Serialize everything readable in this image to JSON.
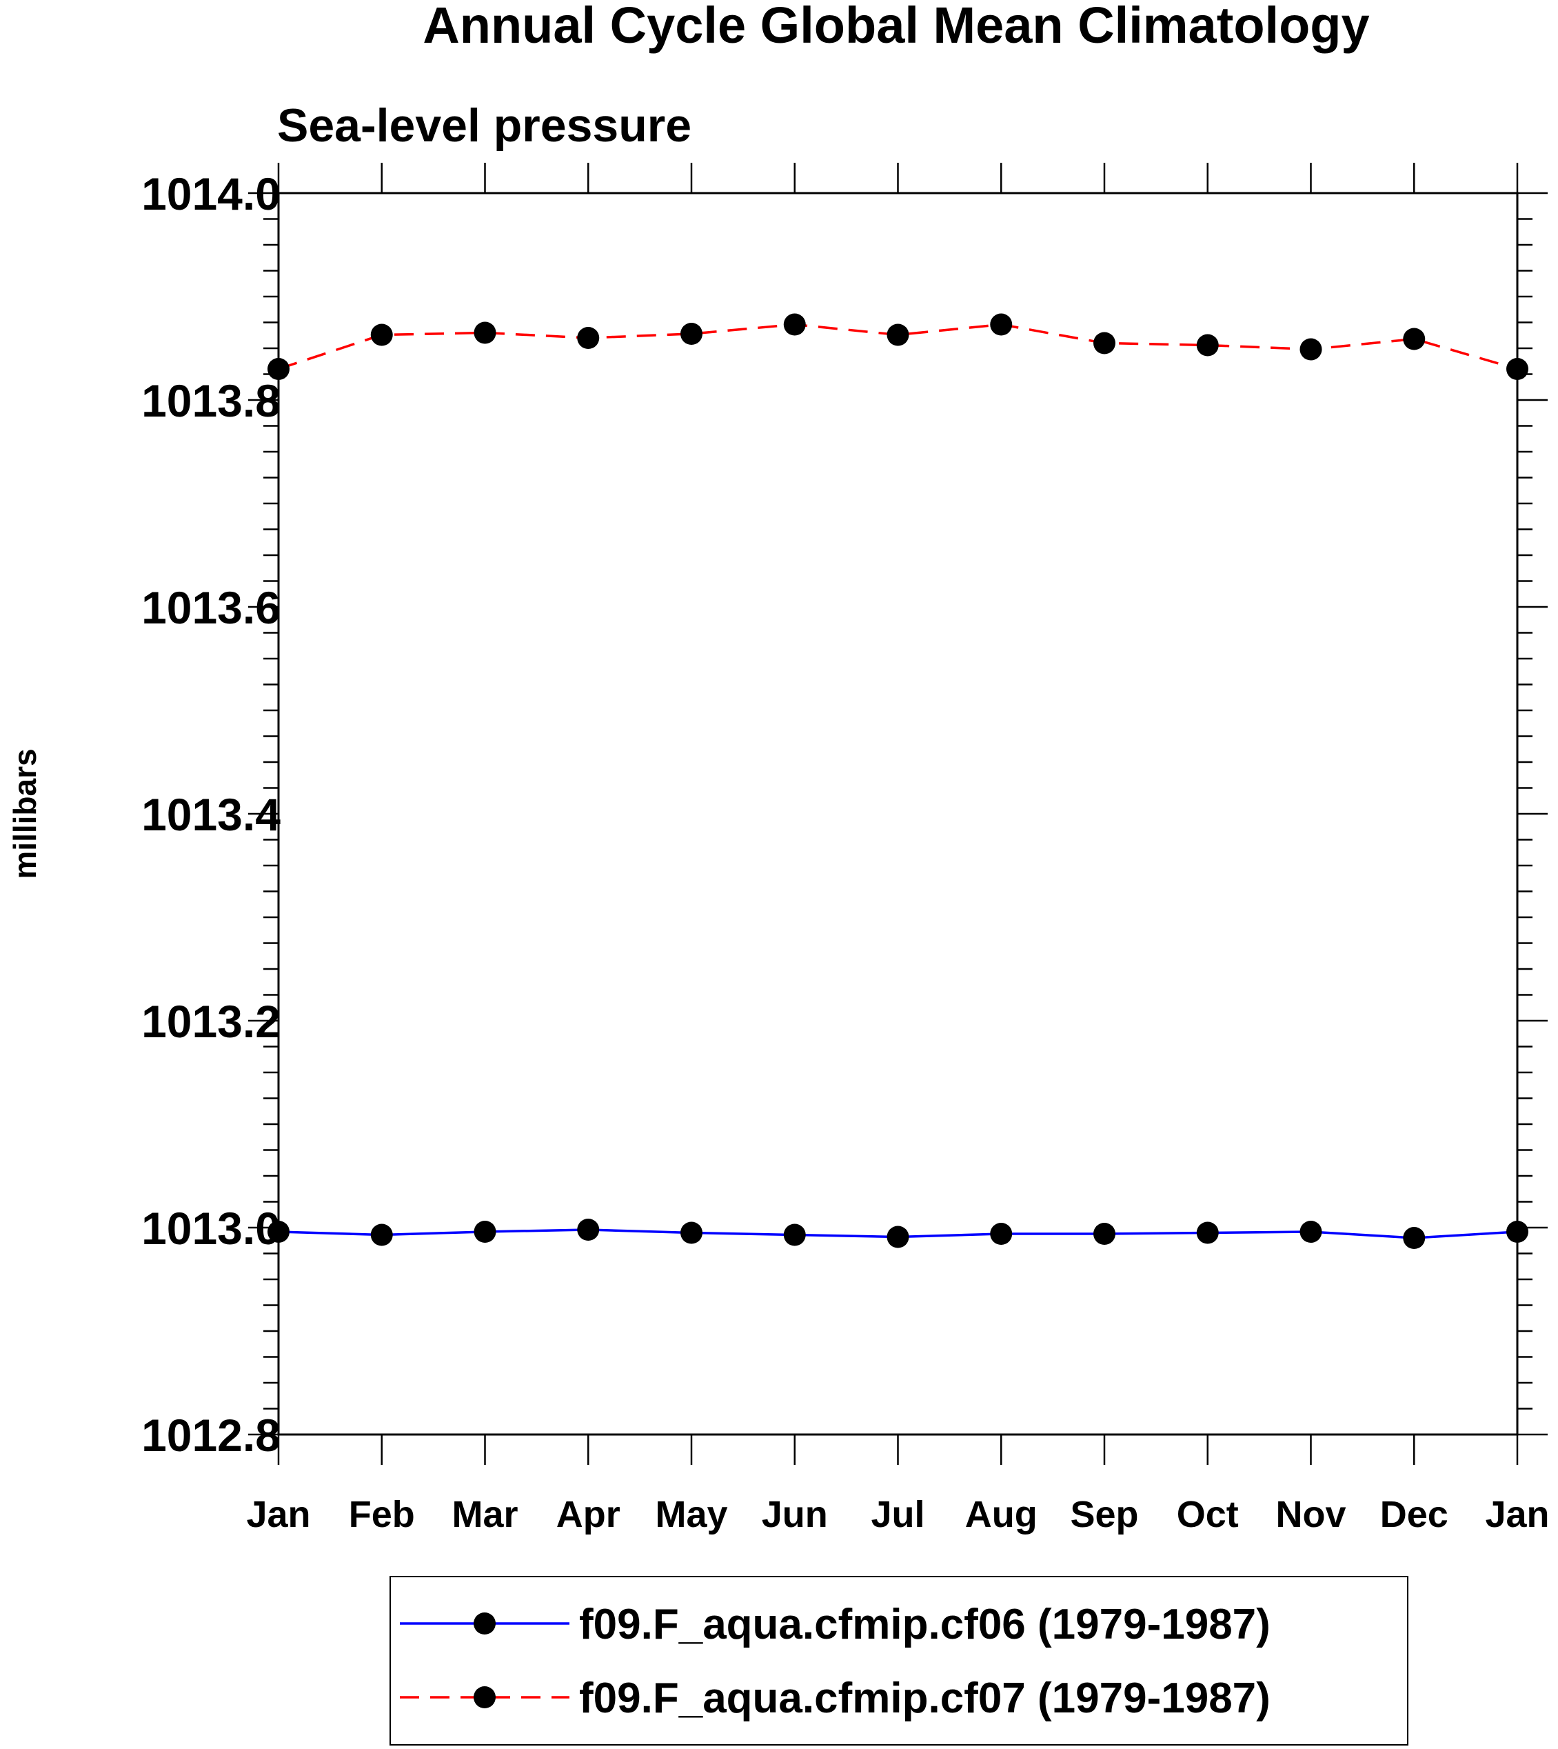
{
  "chart_data": {
    "type": "line",
    "title": "Annual Cycle Global Mean Climatology",
    "subtitle": "Sea-level pressure",
    "xlabel": "",
    "ylabel": "millibars",
    "categories": [
      "Jan",
      "Feb",
      "Mar",
      "Apr",
      "May",
      "Jun",
      "Jul",
      "Aug",
      "Sep",
      "Oct",
      "Nov",
      "Dec",
      "Jan"
    ],
    "ylim": [
      1012.8,
      1014.0
    ],
    "ytick_labels": [
      "1012.8",
      "1013.0",
      "1013.2",
      "1013.4",
      "1013.6",
      "1013.8",
      "1014.0"
    ],
    "ytick_values": [
      1012.8,
      1013.0,
      1013.2,
      1013.4,
      1013.6,
      1013.8,
      1014.0
    ],
    "grid": false,
    "legend_placement": "bottom",
    "series": [
      {
        "name": "f09.F_aqua.cfmip.cf06 (1979-1987)",
        "color": "#0000ff",
        "dash": "solid",
        "marker": "filled-circle",
        "values": [
          1012.996,
          1012.993,
          1012.996,
          1012.998,
          1012.995,
          1012.993,
          1012.991,
          1012.994,
          1012.994,
          1012.995,
          1012.996,
          1012.99,
          1012.996
        ]
      },
      {
        "name": "f09.F_aqua.cfmip.cf07 (1979-1987)",
        "color": "#ff0000",
        "dash": "dashed",
        "marker": "filled-circle",
        "values": [
          1013.83,
          1013.863,
          1013.865,
          1013.86,
          1013.864,
          1013.873,
          1013.863,
          1013.873,
          1013.855,
          1013.853,
          1013.849,
          1013.859,
          1013.83
        ]
      }
    ]
  }
}
